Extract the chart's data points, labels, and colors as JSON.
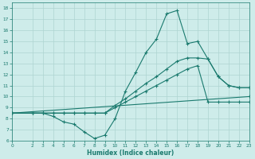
{
  "xlabel": "Humidex (Indice chaleur)",
  "background_color": "#ceecea",
  "grid_color": "#aed4d1",
  "line_color": "#1a7a6e",
  "xlim": [
    0,
    23
  ],
  "ylim": [
    6,
    18.5
  ],
  "xtick_labels": [
    "0",
    "2",
    "3",
    "4",
    "5",
    "6",
    "7",
    "8",
    "9",
    "10",
    "11",
    "12",
    "13",
    "14",
    "15",
    "16",
    "17",
    "18",
    "19",
    "20",
    "21",
    "22",
    "23"
  ],
  "xtick_vals": [
    0,
    2,
    3,
    4,
    5,
    6,
    7,
    8,
    9,
    10,
    11,
    12,
    13,
    14,
    15,
    16,
    17,
    18,
    19,
    20,
    21,
    22,
    23
  ],
  "ytick_vals": [
    6,
    7,
    8,
    9,
    10,
    11,
    12,
    13,
    14,
    15,
    16,
    17,
    18
  ],
  "series": [
    {
      "x": [
        0,
        2,
        3,
        4,
        5,
        6,
        7,
        8,
        9,
        10,
        11,
        12,
        13,
        14,
        15,
        16,
        17,
        18,
        19,
        20,
        21,
        22,
        23
      ],
      "y": [
        8.5,
        8.5,
        8.5,
        8.2,
        7.7,
        7.5,
        6.8,
        6.2,
        6.5,
        8.0,
        10.5,
        12.2,
        14.0,
        15.2,
        17.5,
        17.8,
        14.8,
        15.0,
        13.4,
        11.8,
        11.0,
        10.8,
        10.8
      ]
    },
    {
      "x": [
        0,
        2,
        3,
        4,
        5,
        6,
        7,
        8,
        9,
        10,
        11,
        12,
        13,
        14,
        15,
        16,
        17,
        18,
        19,
        20,
        21,
        22,
        23
      ],
      "y": [
        8.5,
        8.5,
        8.5,
        8.5,
        8.5,
        8.5,
        8.5,
        8.5,
        8.5,
        9.2,
        9.8,
        10.5,
        11.2,
        11.8,
        12.5,
        13.2,
        13.5,
        13.5,
        13.4,
        11.8,
        11.0,
        10.8,
        10.8
      ]
    },
    {
      "x": [
        0,
        2,
        3,
        4,
        5,
        6,
        7,
        8,
        9,
        10,
        11,
        12,
        13,
        14,
        15,
        16,
        17,
        18,
        19,
        20,
        21,
        22,
        23
      ],
      "y": [
        8.5,
        8.5,
        8.5,
        8.5,
        8.5,
        8.5,
        8.5,
        8.5,
        8.5,
        9.0,
        9.5,
        10.0,
        10.5,
        11.0,
        11.5,
        12.0,
        12.5,
        12.8,
        9.5,
        9.5,
        9.5,
        9.5,
        9.5
      ]
    },
    {
      "x": [
        0,
        23
      ],
      "y": [
        8.5,
        10.0
      ]
    }
  ]
}
